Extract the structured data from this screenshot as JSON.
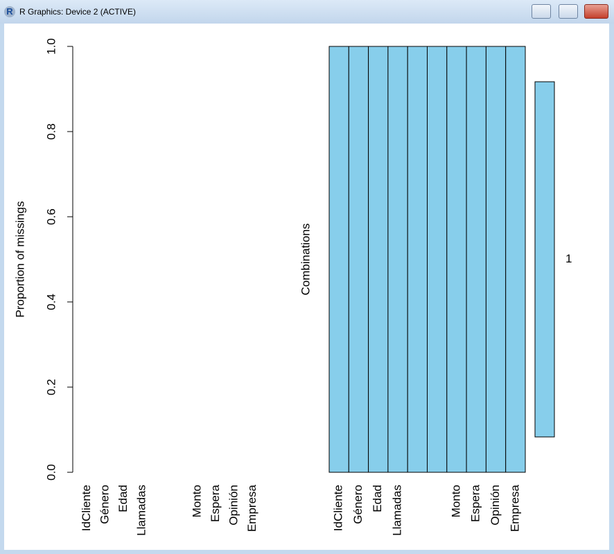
{
  "window": {
    "title": "R Graphics: Device 2 (ACTIVE)"
  },
  "chart_data": [
    {
      "type": "bar",
      "ylabel": "Proportion of missings",
      "categories": [
        "IdCliente",
        "Género",
        "Edad",
        "Llamadas",
        null,
        null,
        "Monto",
        "Espera",
        "Opinión",
        "Empresa"
      ],
      "values": [
        0,
        0,
        0,
        0,
        0,
        0,
        0,
        0,
        0,
        0
      ],
      "color": "#87ceeb",
      "ylim": [
        0,
        1
      ],
      "yticks": [
        {
          "value": 0,
          "label": "0.0"
        },
        0.2,
        0.4,
        0.6,
        0.8,
        {
          "value": 1,
          "label": "1.0"
        }
      ]
    },
    {
      "type": "combinations",
      "ylabel": "Combinations",
      "categories": [
        "IdCliente",
        "Género",
        "Edad",
        "Llamadas",
        null,
        null,
        "Monto",
        "Espera",
        "Opinión",
        "Empresa"
      ],
      "observed_color": "#87ceeb",
      "combinations": [
        {
          "label": "1",
          "cells": [
            0,
            0,
            0,
            0,
            0,
            0,
            0,
            0,
            0,
            0
          ],
          "proportion": 1
        }
      ]
    }
  ]
}
